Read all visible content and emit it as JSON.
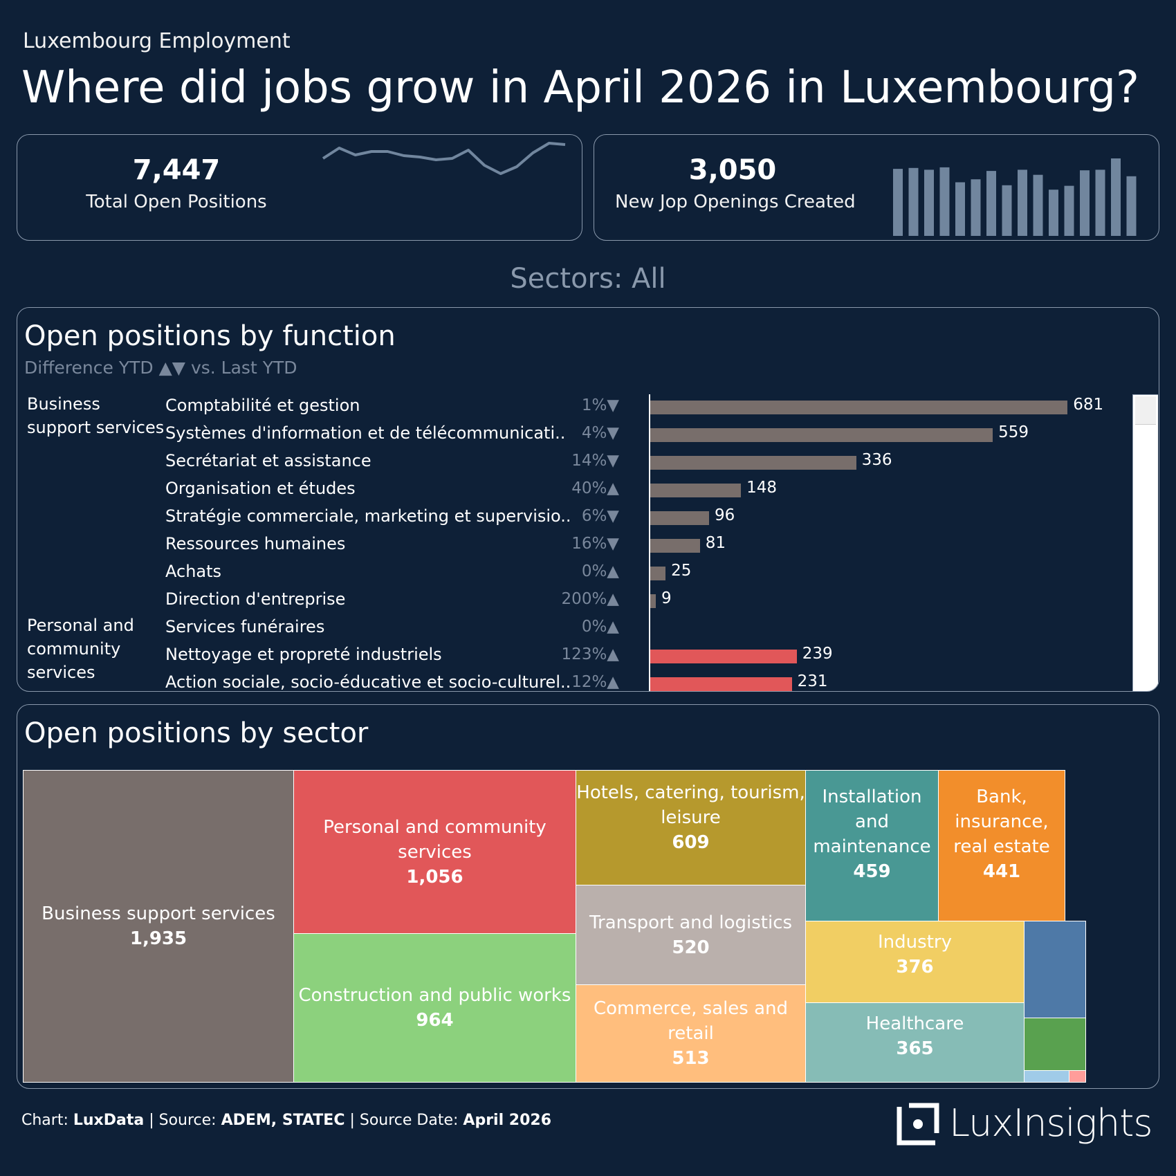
{
  "header": {
    "eyebrow": "Luxembourg Employment",
    "title": "Where did jobs grow in April 2026 in Luxembourg?"
  },
  "kpis": [
    {
      "value": "7,447",
      "label": "Total Open Positions",
      "sparkline": [
        7.2,
        7.35,
        7.25,
        7.3,
        7.3,
        7.24,
        7.22,
        7.18,
        7.2,
        7.32,
        7.1,
        6.98,
        7.08,
        7.28,
        7.42,
        7.4
      ]
    },
    {
      "value": "3,050",
      "label": "New Jop Openings Created",
      "bars": [
        225,
        228,
        222,
        230,
        180,
        190,
        218,
        170,
        222,
        205,
        155,
        168,
        220,
        222,
        260,
        200
      ]
    }
  ],
  "filter_label": "Sectors: All",
  "function_panel": {
    "title": "Open positions by function",
    "subtitle": "Difference YTD ▲▼ vs. Last YTD",
    "colors": {
      "Business support services": "#786e6b",
      "Personal and community services": "#e15759"
    },
    "groups": [
      {
        "name": "Business support services",
        "label_lines": [
          "Business",
          "support services"
        ]
      },
      {
        "name": "Personal and community services",
        "label_lines": [
          "Personal and",
          "community",
          "services"
        ]
      }
    ]
  },
  "chart_data": {
    "type": "bar",
    "orientation": "horizontal",
    "categories": [
      "Comptabilité et gestion",
      "Systèmes d'information et de télécommunicati..",
      "Secrétariat et assistance",
      "Organisation et études",
      "Stratégie commerciale, marketing et supervisio..",
      "Ressources humaines",
      "Achats",
      "Direction d'entreprise",
      "Services funéraires",
      "Nettoyage et propreté industriels",
      "Action sociale, socio-éducative et socio-culturel.."
    ],
    "groups": [
      "Business support services",
      "Business support services",
      "Business support services",
      "Business support services",
      "Business support services",
      "Business support services",
      "Business support services",
      "Business support services",
      "Personal and community services",
      "Personal and community services",
      "Personal and community services"
    ],
    "values": [
      681,
      559,
      336,
      148,
      96,
      81,
      25,
      9,
      0,
      239,
      231
    ],
    "value_labels": [
      "681",
      "559",
      "336",
      "148",
      "96",
      "81",
      "25",
      "9",
      "",
      "239",
      "231"
    ],
    "pct_change": [
      "1%",
      "4%",
      "14%",
      "40%",
      "6%",
      "16%",
      "0%",
      "200%",
      "0%",
      "123%",
      "12%"
    ],
    "direction": [
      "down",
      "down",
      "down",
      "up",
      "down",
      "down",
      "up",
      "up",
      "up",
      "up",
      "up"
    ],
    "xlim": [
      0,
      700
    ]
  },
  "sector_panel": {
    "title": "Open positions by sector",
    "treemap": [
      {
        "name": "Business support services",
        "value": "1,935",
        "color": "#786e6b"
      },
      {
        "name": "Personal and community services",
        "value": "1,056",
        "color": "#e15759"
      },
      {
        "name": "Construction and public works",
        "value": "964",
        "color": "#8cd17d"
      },
      {
        "name": "Hotels, catering, tourism, leisure",
        "value": "609",
        "color": "#b6992d"
      },
      {
        "name": "Transport and logistics",
        "value": "520",
        "color": "#bab0ac"
      },
      {
        "name": "Commerce, sales and retail",
        "value": "513",
        "color": "#ffbe7d"
      },
      {
        "name": "Installation and maintenance",
        "value": "459",
        "color": "#499894"
      },
      {
        "name": "Bank, insurance, real estate",
        "value": "441",
        "color": "#f28e2b"
      },
      {
        "name": "Industry",
        "value": "376",
        "color": "#f1ce63"
      },
      {
        "name": "Healthcare",
        "value": "365",
        "color": "#86bcb6"
      }
    ],
    "unlabeled_colors": [
      "#4e79a7",
      "#59a14f",
      "#a0cbe8",
      "#ff9d9a"
    ]
  },
  "footer": {
    "chart_prefix": "Chart: ",
    "chart_by": "LuxData",
    "source_prefix": " | Source: ",
    "source": "ADEM, STATEC",
    "date_prefix": " | Source Date: ",
    "date": "April 2026"
  },
  "logo": {
    "text": "LuxInsights"
  }
}
